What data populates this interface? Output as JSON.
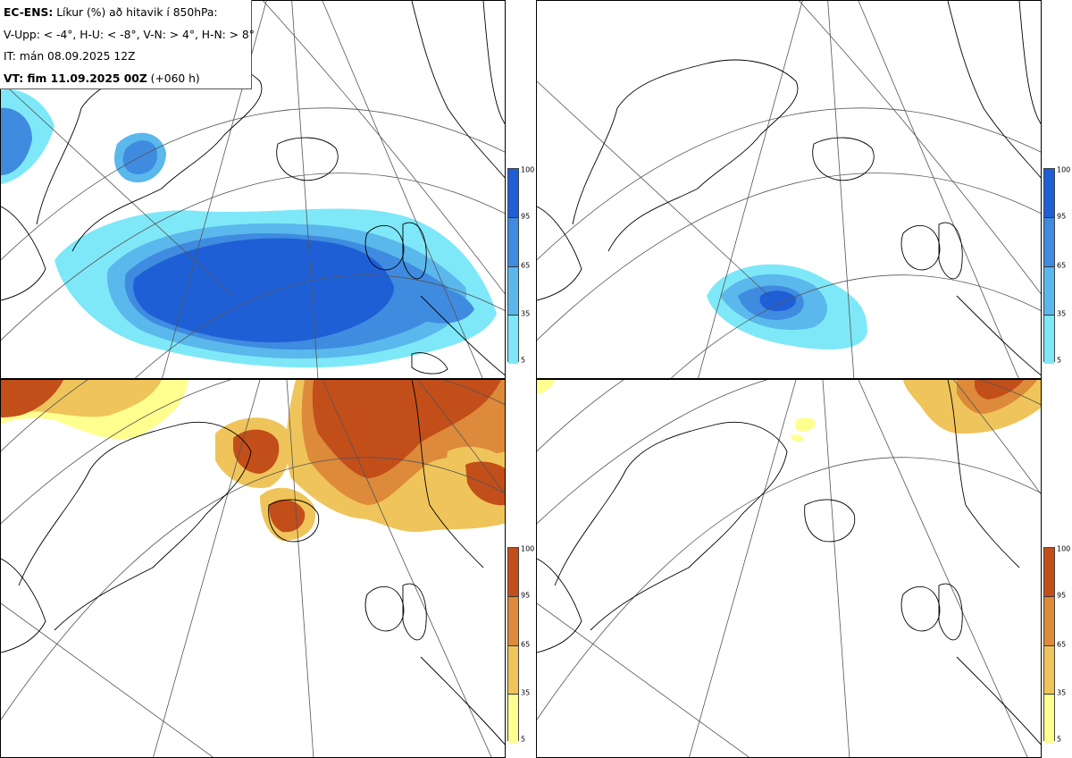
{
  "header": {
    "line1_bold": "EC-ENS:",
    "line1_rest": " Líkur (%) að hitavik í 850hPa:",
    "line2": "V-Upp: < -4°, H-U: < -8°, V-N: > 4°, H-N: > 8°",
    "line3": "IT: mán 08.09.2025 12Z",
    "line4_bold": "VT: fim 11.09.2025 00Z",
    "line4_rest": " (+060 h)"
  },
  "panels": [
    {
      "id": "V-Upp",
      "scheme": "cold",
      "description": "probability anomaly < -4°"
    },
    {
      "id": "H-U",
      "scheme": "cold",
      "description": "probability anomaly < -8°"
    },
    {
      "id": "V-N",
      "scheme": "warm",
      "description": "probability anomaly > 4°"
    },
    {
      "id": "H-N",
      "scheme": "warm",
      "description": "probability anomaly > 8°"
    }
  ],
  "colorbar": {
    "ticks": [
      "100",
      "95",
      "65",
      "35",
      "5"
    ],
    "cold_colors": [
      "#1f5fd6",
      "#3f8be0",
      "#5ab8ec",
      "#7ee8f8"
    ],
    "warm_colors": [
      "#c24e1a",
      "#dd8a3a",
      "#efc45a",
      "#ffff90"
    ]
  }
}
